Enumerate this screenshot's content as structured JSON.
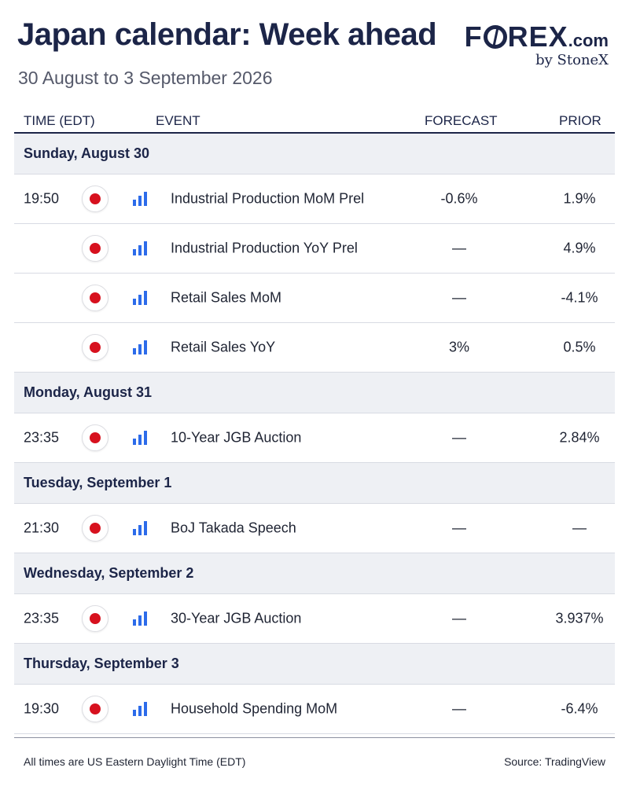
{
  "header": {
    "title": "Japan calendar: Week ahead",
    "subtitle": "30 August to 3 September 2026"
  },
  "logo": {
    "word_left": "F",
    "word_right": "REX",
    "suffix": ".com",
    "byline": "by StoneX"
  },
  "columns": {
    "time": "TIME (EDT)",
    "event": "EVENT",
    "forecast": "FORECAST",
    "prior": "PRIOR"
  },
  "icons": {
    "flag": "japan-flag-icon",
    "importance": "importance-bars-icon"
  },
  "colors": {
    "title": "#1c2548",
    "flag_red": "#d7111e",
    "importance_blue": "#2c6bea",
    "day_bg": "#eef0f4"
  },
  "days": [
    {
      "label": "Sunday, August 30",
      "events": [
        {
          "time": "19:50",
          "event": "Industrial Production MoM Prel",
          "forecast": "-0.6%",
          "prior": "1.9%"
        },
        {
          "time": "",
          "event": "Industrial Production YoY Prel",
          "forecast": "—",
          "prior": "4.9%"
        },
        {
          "time": "",
          "event": "Retail Sales MoM",
          "forecast": "—",
          "prior": "-4.1%"
        },
        {
          "time": "",
          "event": "Retail Sales YoY",
          "forecast": "3%",
          "prior": "0.5%"
        }
      ]
    },
    {
      "label": "Monday, August 31",
      "events": [
        {
          "time": "23:35",
          "event": "10-Year JGB Auction",
          "forecast": "—",
          "prior": "2.84%"
        }
      ]
    },
    {
      "label": "Tuesday, September 1",
      "events": [
        {
          "time": "21:30",
          "event": "BoJ Takada Speech",
          "forecast": "—",
          "prior": "—"
        }
      ]
    },
    {
      "label": "Wednesday, September 2",
      "events": [
        {
          "time": "23:35",
          "event": "30-Year JGB Auction",
          "forecast": "—",
          "prior": "3.937%"
        }
      ]
    },
    {
      "label": "Thursday, September 3",
      "events": [
        {
          "time": "19:30",
          "event": "Household Spending MoM",
          "forecast": "—",
          "prior": "-6.4%"
        }
      ]
    }
  ],
  "footer": {
    "note": "All times are US Eastern Daylight Time (EDT)",
    "source": "Source: TradingView"
  }
}
